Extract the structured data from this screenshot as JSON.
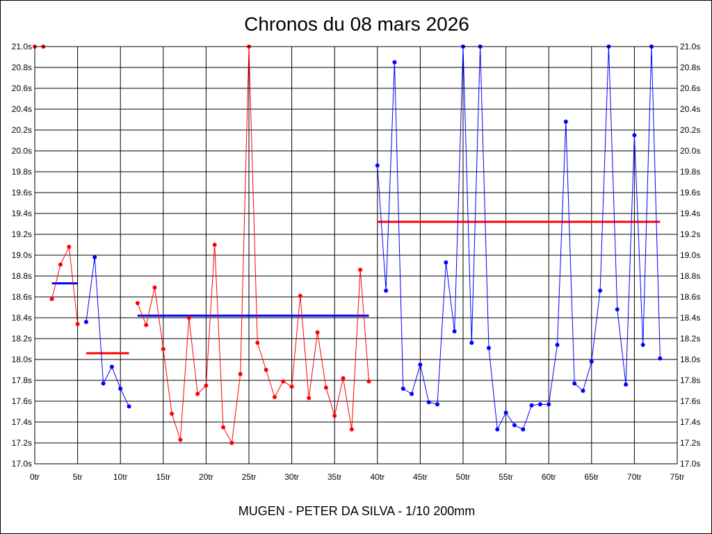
{
  "chart_data": {
    "type": "line",
    "title": "Chronos du 08 mars 2026",
    "subtitle": "MUGEN - PETER DA SILVA - 1/10 200mm",
    "xlim": [
      0,
      75
    ],
    "ylim": [
      17.0,
      21.0
    ],
    "x_ticks": [
      0,
      5,
      10,
      15,
      20,
      25,
      30,
      35,
      40,
      45,
      50,
      55,
      60,
      65,
      70,
      75
    ],
    "x_tick_labels": [
      "0tr",
      "5tr",
      "10tr",
      "15tr",
      "20tr",
      "25tr",
      "30tr",
      "35tr",
      "40tr",
      "45tr",
      "50tr",
      "55tr",
      "60tr",
      "65tr",
      "70tr",
      "75tr"
    ],
    "y_ticks": [
      17.0,
      17.2,
      17.4,
      17.6,
      17.8,
      18.0,
      18.2,
      18.4,
      18.6,
      18.8,
      19.0,
      19.2,
      19.4,
      19.6,
      19.8,
      20.0,
      20.2,
      20.4,
      20.6,
      20.8,
      21.0
    ],
    "y_tick_labels": [
      "17.0s",
      "17.2s",
      "17.4s",
      "17.6s",
      "17.8s",
      "18.0s",
      "18.2s",
      "18.4s",
      "18.6s",
      "18.8s",
      "19.0s",
      "19.2s",
      "19.4s",
      "19.6s",
      "19.8s",
      "20.0s",
      "20.2s",
      "20.4s",
      "20.6s",
      "20.8s",
      "21.0s"
    ],
    "grid": true,
    "series": [
      {
        "color": "#ff0000",
        "x": [
          0,
          1
        ],
        "y": [
          21.0,
          21.0
        ]
      },
      {
        "color": "#ff0000",
        "x": [
          2,
          3,
          4,
          5
        ],
        "y": [
          18.58,
          18.91,
          19.08,
          18.34
        ]
      },
      {
        "color": "#0000ff",
        "x": [
          6,
          7,
          8,
          9,
          10,
          11
        ],
        "y": [
          18.36,
          18.98,
          17.77,
          17.93,
          17.72,
          17.55
        ]
      },
      {
        "color": "#ff0000",
        "x": [
          12,
          13,
          14,
          15,
          16,
          17,
          18,
          19,
          20,
          21,
          22,
          23,
          24,
          25,
          26,
          27,
          28,
          29,
          30,
          31,
          32,
          33,
          34,
          35,
          36,
          37,
          38,
          39
        ],
        "y": [
          18.54,
          18.33,
          18.69,
          18.1,
          17.48,
          17.23,
          18.4,
          17.67,
          17.75,
          19.1,
          17.35,
          17.2,
          17.86,
          21.0,
          18.16,
          17.9,
          17.64,
          17.79,
          17.74,
          18.61,
          17.63,
          18.26,
          17.73,
          17.46,
          17.82,
          17.33,
          18.86,
          17.79
        ]
      },
      {
        "color": "#0000ff",
        "x": [
          40,
          41,
          42,
          43,
          44,
          45,
          46,
          47,
          48,
          49,
          50,
          51,
          52,
          53,
          54,
          55,
          56,
          57,
          58,
          59,
          60,
          61,
          62,
          63,
          64,
          65,
          66,
          67,
          68,
          69,
          70,
          71,
          72,
          73
        ],
        "y": [
          19.86,
          18.66,
          20.85,
          17.72,
          17.67,
          17.95,
          17.59,
          17.57,
          18.93,
          18.27,
          21.0,
          18.16,
          21.0,
          18.11,
          17.33,
          17.49,
          17.37,
          17.33,
          17.56,
          17.57,
          17.57,
          18.14,
          20.28,
          17.77,
          17.7,
          17.98,
          18.66,
          21.0,
          18.48,
          17.76,
          20.15,
          18.14,
          21.0,
          18.01
        ]
      }
    ],
    "averages": [
      {
        "color": "#0000ff",
        "x": [
          2,
          5
        ],
        "y": 18.73
      },
      {
        "color": "#ff0000",
        "x": [
          6,
          11
        ],
        "y": 18.06
      },
      {
        "color": "#0000ff",
        "x": [
          12,
          39
        ],
        "y": 18.42
      },
      {
        "color": "#ff0000",
        "x": [
          40,
          73
        ],
        "y": 19.32
      }
    ]
  }
}
